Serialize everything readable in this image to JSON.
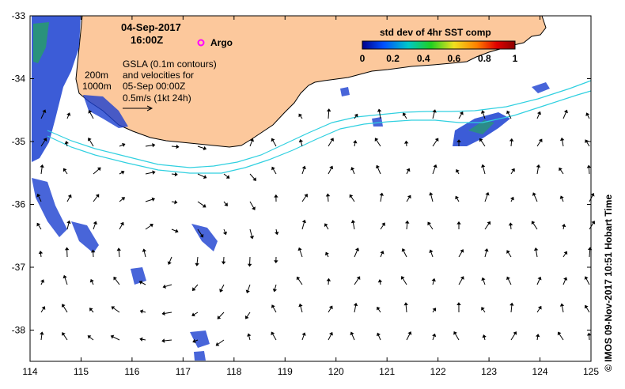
{
  "title": {
    "date": "04-Sep-2017",
    "time": "16:00Z"
  },
  "argo_label": "Argo",
  "depth_labels": [
    "200m",
    "1000m"
  ],
  "gsla_text": [
    "GSLA (0.1m contours)",
    "and velocities for",
    "05-Sep 00:00Z",
    "0.5m/s (1kt 24h)"
  ],
  "colorbar": {
    "title": "std dev of 4hr SST comp",
    "ticks": [
      "0",
      "0.2",
      "0.4",
      "0.6",
      "0.8",
      "1"
    ],
    "colors": [
      "#00008b",
      "#0050ff",
      "#00c8c8",
      "#20d020",
      "#f0e020",
      "#ff8000",
      "#e00000",
      "#8b0000"
    ]
  },
  "x_ticks": [
    "114",
    "115",
    "116",
    "117",
    "118",
    "119",
    "120",
    "121",
    "122",
    "123",
    "124",
    "125"
  ],
  "y_ticks": [
    "-33",
    "-34",
    "-35",
    "-36",
    "-37",
    "-38"
  ],
  "credit": "© IMOS 09-Nov-2017 10:51 Hobart Time",
  "colors": {
    "land": "#fcc89c",
    "contour": "#30d0e0",
    "sst_low": "#1a3fd0",
    "argo": "#ff00ff"
  }
}
